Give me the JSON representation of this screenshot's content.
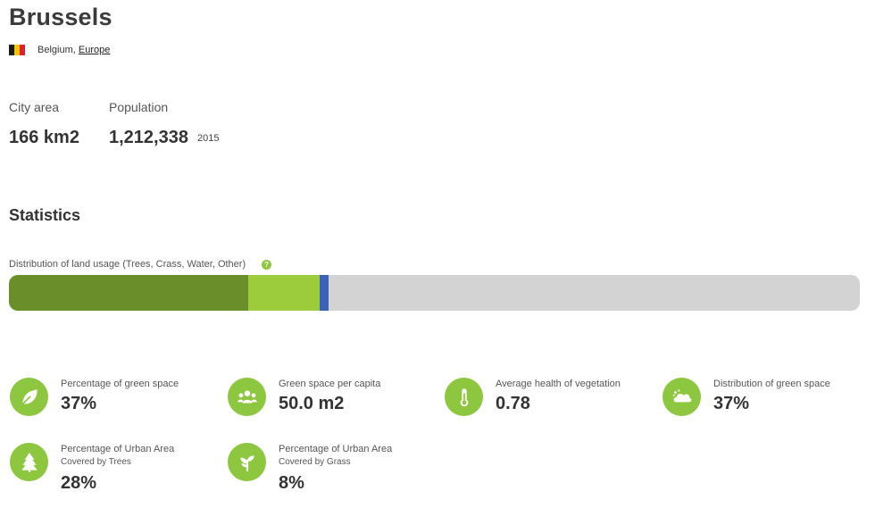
{
  "city": {
    "name": "Brussels",
    "country": "Belgium,",
    "region": "Europe",
    "flag_colors": [
      "#1a1a1a",
      "#f5c400",
      "#e0202a"
    ]
  },
  "facts": {
    "area_label": "City area",
    "area_value": "166 km2",
    "population_label": "Population",
    "population_value": "1,212,338",
    "population_year": "2015"
  },
  "statistics": {
    "title": "Statistics",
    "distribution_label": "Distribution of land usage (Trees, Crass, Water, Other)",
    "help_icon": "question-icon",
    "distribution": [
      {
        "name": "Trees",
        "fraction": 0.2815,
        "color": "#6a8f2a"
      },
      {
        "name": "Grass",
        "fraction": 0.0838,
        "color": "#9ccc3c"
      },
      {
        "name": "Water",
        "fraction": 0.0105,
        "color": "#3a62b8"
      },
      {
        "name": "Other",
        "fraction": 0.6242,
        "color": "#d3d3d3"
      }
    ],
    "items": [
      {
        "icon": "leaf-icon",
        "label": "Percentage of green space",
        "sublabel": "",
        "value": "37%"
      },
      {
        "icon": "people-icon",
        "label": "Green space per capita",
        "sublabel": "",
        "value": "50.0 m2"
      },
      {
        "icon": "thermometer-icon",
        "label": "Average health of vegetation",
        "sublabel": "",
        "value": "0.78"
      },
      {
        "icon": "cloud-distribution-icon",
        "label": "Distribution of green space",
        "sublabel": "",
        "value": "37%"
      },
      {
        "icon": "tree-icon",
        "label": "Percentage of Urban Area",
        "sublabel": "Covered by Trees",
        "value": "28%"
      },
      {
        "icon": "sprout-icon",
        "label": "Percentage of Urban Area",
        "sublabel": "Covered by Grass",
        "value": "8%"
      }
    ]
  }
}
